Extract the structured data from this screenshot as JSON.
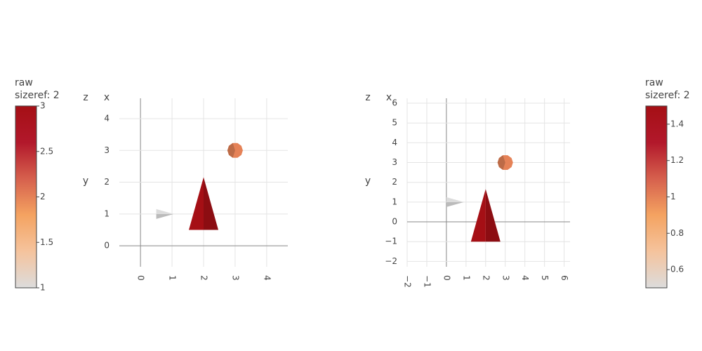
{
  "chart_data": [
    {
      "type": "cone",
      "xlabel": "x",
      "ylabel": "y",
      "zlabel": "z",
      "x": [
        0.5,
        2,
        3
      ],
      "y": [
        1,
        0.5,
        3
      ],
      "u": [
        1,
        0,
        0
      ],
      "v": [
        0,
        3,
        0
      ],
      "w": [
        0,
        0,
        2
      ],
      "xlim": [
        -0.67,
        4.67
      ],
      "xticks": [
        0,
        1,
        2,
        3,
        4
      ],
      "ylim": [
        -0.66,
        4.64
      ],
      "yticks": [
        0,
        1,
        2,
        3,
        4
      ],
      "colorscale": [
        "#dcdcdc",
        "#f5c39d",
        "#f4a361",
        "#d6604d",
        "#b2182b",
        "#a50f15"
      ],
      "colorbar": {
        "title": [
          "raw",
          "sizeref: 2"
        ],
        "lim": [
          1,
          3
        ],
        "ticks": [
          1,
          1.5,
          2,
          2.5,
          3
        ]
      }
    },
    {
      "type": "cone",
      "xlabel": "x",
      "ylabel": "y",
      "zlabel": "z",
      "x": [
        0,
        2,
        3
      ],
      "y": [
        1,
        -1,
        3
      ],
      "u": [
        0.5,
        0,
        0
      ],
      "v": [
        0,
        1.5,
        0
      ],
      "w": [
        0,
        0,
        1
      ],
      "xlim": [
        -2,
        6.3
      ],
      "xticks": [
        {
          "value": -2,
          "label": "−2"
        },
        {
          "value": -1,
          "label": "−1"
        },
        0,
        1,
        2,
        3,
        4,
        5,
        6
      ],
      "ylim": [
        -2.27,
        6.25
      ],
      "yticks": [
        {
          "value": -2,
          "label": "−2"
        },
        {
          "value": -1,
          "label": "−1"
        },
        0,
        1,
        2,
        3,
        4,
        5,
        6
      ],
      "colorscale": [
        "#dcdcdc",
        "#f5c39d",
        "#f4a361",
        "#d6604d",
        "#b2182b",
        "#a50f15"
      ],
      "colorbar": {
        "title": [
          "raw",
          "sizeref: 2"
        ],
        "lim": [
          0.5,
          1.5
        ],
        "ticks": [
          0.6,
          0.8,
          1,
          1.2,
          1.4
        ]
      }
    }
  ]
}
